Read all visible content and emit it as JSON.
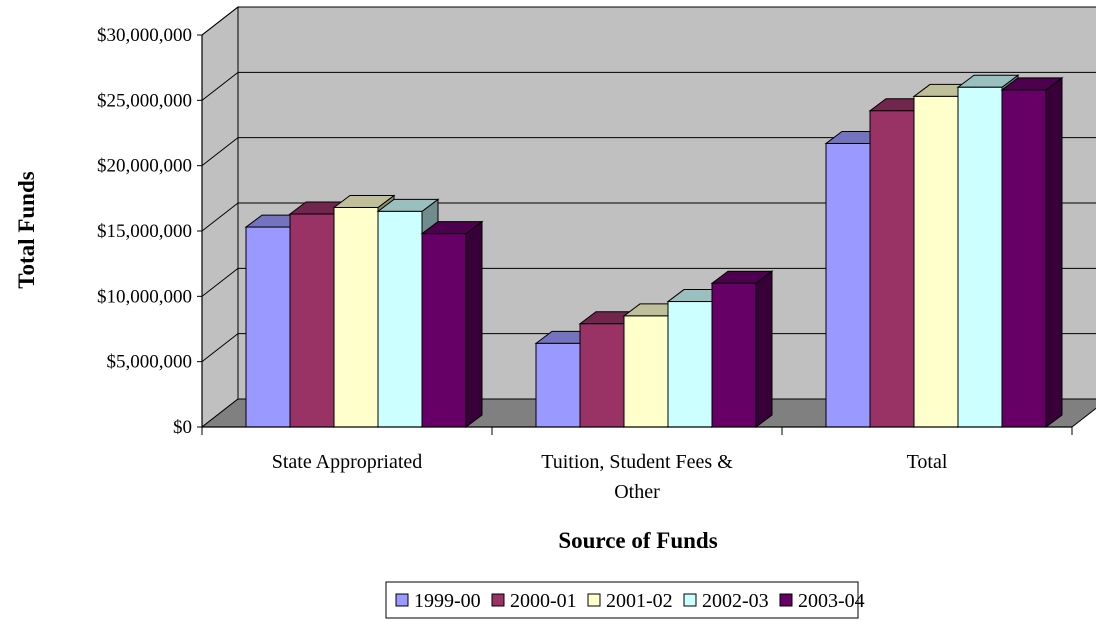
{
  "chart_data": {
    "type": "bar",
    "title": "",
    "xlabel": "Source of Funds",
    "ylabel": "Total Funds",
    "ylim": [
      0,
      30000000
    ],
    "yticks": [
      0,
      5000000,
      10000000,
      15000000,
      20000000,
      25000000,
      30000000
    ],
    "ytick_labels": [
      "$0",
      "$5,000,000",
      "$10,000,000",
      "$15,000,000",
      "$20,000,000",
      "$25,000,000",
      "$30,000,000"
    ],
    "categories": [
      "State Appropriated",
      "Tuition, Student Fees & Other",
      "Total"
    ],
    "category_lines": [
      [
        "State Appropriated"
      ],
      [
        "Tuition, Student Fees &",
        "Other"
      ],
      [
        "Total"
      ]
    ],
    "series": [
      {
        "name": "1999-00",
        "color": "#9999FF",
        "values": [
          15300000,
          6400000,
          21700000
        ]
      },
      {
        "name": "2000-01",
        "color": "#993366",
        "values": [
          16300000,
          7900000,
          24200000
        ]
      },
      {
        "name": "2001-02",
        "color": "#FFFFCC",
        "values": [
          16800000,
          8500000,
          25300000
        ]
      },
      {
        "name": "2002-03",
        "color": "#CCFFFF",
        "values": [
          16500000,
          9600000,
          26000000
        ]
      },
      {
        "name": "2003-04",
        "color": "#660066",
        "values": [
          14800000,
          11000000,
          25800000
        ]
      }
    ],
    "grid": true,
    "legend": "bottom",
    "style": "3d-clustered-column",
    "wall_color": "#C0C0C0",
    "floor_color": "#808080"
  }
}
